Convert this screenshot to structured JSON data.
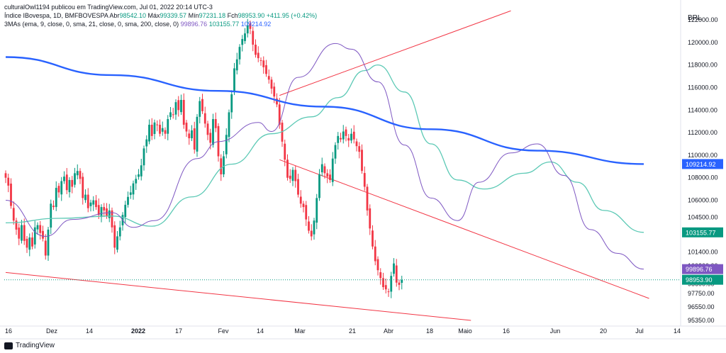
{
  "header": {
    "publisher": "culturalOwl1194 publicou em TradingView.com, Jul 01, 2022 20:14 UTC-3",
    "symbol": "Índice IBovespa, 1D, BMFBOVESPA",
    "open_label": "Abr",
    "open_value": "98542.10",
    "high_label": "Máx",
    "high_value": "99339.57",
    "low_label": "Mín",
    "low_value": "97231.18",
    "close_label": "Fch",
    "close_value": "98953.90",
    "change": "+411.95 (+0.42%)",
    "ma_label": "3MAs (ema, 9, close, 0, sma, 21, close, 0, sma, 200, close, 0)",
    "ma1_value": "99896.76",
    "ma2_value": "103155.77",
    "ma3_value": "109214.92"
  },
  "currency": "BRL",
  "footer": {
    "brand": "TradingView"
  },
  "colors": {
    "up": "#089981",
    "down": "#f23645",
    "ema9": "#7e57c2",
    "sma21": "#5cc9b5",
    "sma200": "#2962ff",
    "trend": "#f23645"
  },
  "chart_data": {
    "type": "candlestick",
    "y_ticks": [
      "122000.00",
      "120000.00",
      "118000.00",
      "116000.00",
      "114000.00",
      "112000.00",
      "110000.00",
      "108000.00",
      "106000.00",
      "104500.00",
      "103000.00",
      "101400.00",
      "100200.00",
      "98600.00",
      "97750.00",
      "96550.00",
      "95350.00"
    ],
    "x_ticks": [
      "16",
      "Dez",
      "14",
      "2022",
      "17",
      "Fev",
      "14",
      "Mar",
      "21",
      "Abr",
      "18",
      "Maio",
      "16",
      "Jun",
      "20",
      "Jul",
      "14"
    ],
    "price_labels": [
      {
        "value": "109214.92",
        "series": "sma200"
      },
      {
        "value": "103155.77",
        "series": "sma21"
      },
      {
        "value": "99896.76",
        "series": "ema9"
      },
      {
        "value": "98953.90",
        "series": "last"
      }
    ],
    "closes": [
      108000,
      107300,
      105500,
      104200,
      103400,
      102600,
      103800,
      102400,
      101800,
      102700,
      101900,
      103600,
      103800,
      103100,
      102600,
      101100,
      103400,
      105700,
      105400,
      107100,
      106700,
      107700,
      108100,
      106900,
      107800,
      107200,
      108400,
      108600,
      107900,
      106200,
      106500,
      105300,
      105800,
      106000,
      105400,
      104700,
      105400,
      105100,
      104600,
      105100,
      103600,
      101800,
      102800,
      103600,
      104700,
      105600,
      106300,
      106700,
      107500,
      107900,
      108300,
      109100,
      110600,
      111400,
      112700,
      111700,
      112900,
      112700,
      111900,
      112400,
      111900,
      113200,
      113800,
      113600,
      114700,
      114000,
      114900,
      112700,
      112100,
      111500,
      112200,
      110500,
      113400,
      114800,
      113900,
      112800,
      111800,
      111100,
      113200,
      112400,
      109900,
      108300,
      109900,
      111800,
      113800,
      115400,
      117700,
      118500,
      119600,
      120300,
      120800,
      121500,
      121200,
      119800,
      118900,
      118600,
      118400,
      117800,
      117200,
      116700,
      115900,
      115200,
      114500,
      112700,
      111200,
      109600,
      108000,
      107900,
      108700,
      107700,
      106500,
      105700,
      105400,
      104300,
      103300,
      102800,
      104200,
      106200,
      108300,
      109200,
      108400,
      108100,
      107800,
      109700,
      110900,
      111700,
      111400,
      112100,
      111700,
      111300,
      111900,
      111400,
      110800,
      110300,
      108600,
      107200,
      105100,
      103500,
      101900,
      100600,
      99800,
      99100,
      98300,
      98100,
      97900,
      99300,
      100400,
      98700,
      98500,
      98950
    ],
    "ema9_points": [
      [
        0,
        106000
      ],
      [
        15,
        102800
      ],
      [
        25,
        104300
      ],
      [
        40,
        104900
      ],
      [
        48,
        103600
      ],
      [
        56,
        104200
      ],
      [
        72,
        109700
      ],
      [
        80,
        111200
      ],
      [
        95,
        112900
      ],
      [
        100,
        112100
      ],
      [
        110,
        116900
      ],
      [
        124,
        119900
      ],
      [
        130,
        119400
      ],
      [
        140,
        116500
      ],
      [
        150,
        110900
      ],
      [
        160,
        106200
      ],
      [
        170,
        104200
      ],
      [
        178,
        107600
      ],
      [
        190,
        110200
      ],
      [
        200,
        111000
      ],
      [
        210,
        108200
      ],
      [
        220,
        103400
      ],
      [
        230,
        101300
      ],
      [
        240,
        99896
      ]
    ],
    "sma21_points": [
      [
        0,
        104000
      ],
      [
        20,
        104400
      ],
      [
        40,
        104600
      ],
      [
        55,
        103700
      ],
      [
        70,
        106300
      ],
      [
        85,
        109200
      ],
      [
        100,
        111900
      ],
      [
        115,
        113400
      ],
      [
        125,
        115100
      ],
      [
        135,
        117500
      ],
      [
        140,
        118000
      ],
      [
        150,
        115600
      ],
      [
        160,
        111000
      ],
      [
        170,
        107800
      ],
      [
        180,
        107000
      ],
      [
        195,
        108400
      ],
      [
        205,
        109400
      ],
      [
        215,
        107600
      ],
      [
        225,
        105100
      ],
      [
        240,
        103155
      ]
    ],
    "sma200_points": [
      [
        0,
        118700
      ],
      [
        40,
        117100
      ],
      [
        80,
        115700
      ],
      [
        120,
        114300
      ],
      [
        160,
        112300
      ],
      [
        200,
        110400
      ],
      [
        240,
        109214
      ]
    ],
    "trendlines": [
      {
        "from": [
          103,
          115300
        ],
        "to": [
          190,
          122800
        ]
      },
      {
        "from": [
          103,
          109600
        ],
        "to": [
          242,
          97300
        ]
      },
      {
        "from": [
          0,
          99600
        ],
        "to": [
          175,
          95350
        ]
      }
    ]
  }
}
